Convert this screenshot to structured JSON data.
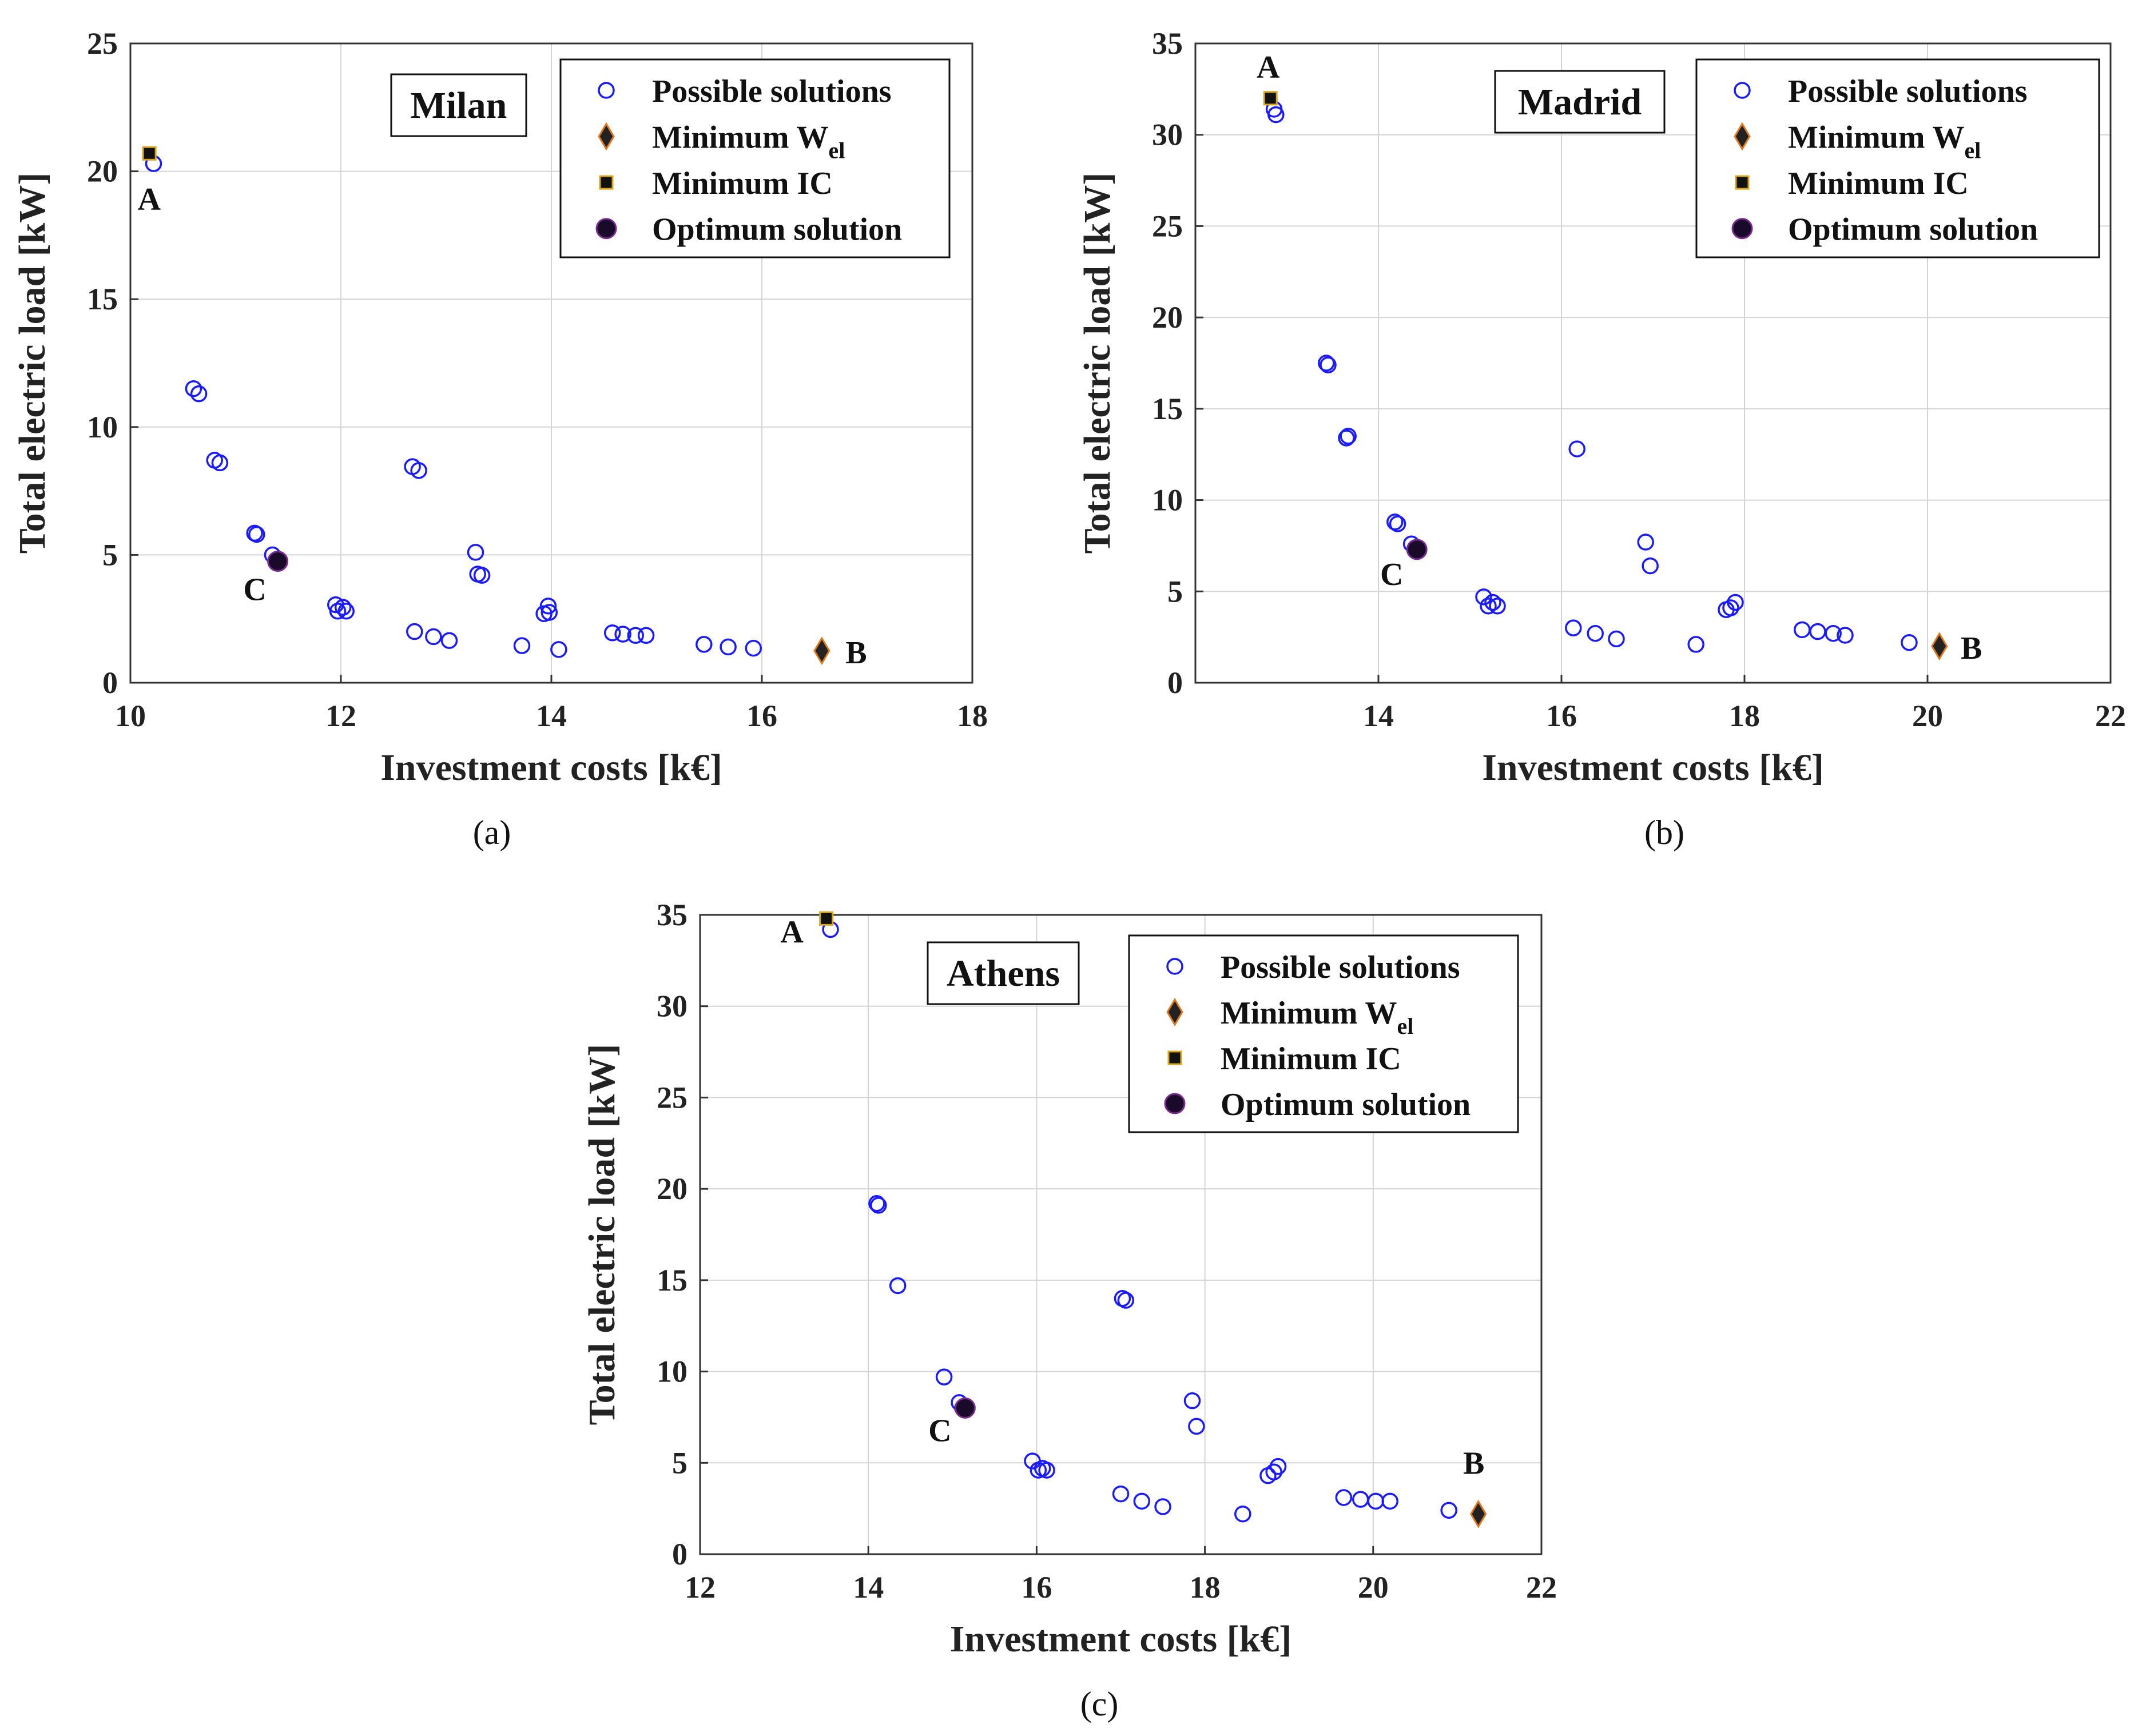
{
  "chart_data": [
    {
      "type": "scatter",
      "id": "milan",
      "panel_label": "(a)",
      "city": "Milan",
      "xlabel": "Investment costs  [k€]",
      "ylabel": "Total electric load [kW]",
      "xlim": [
        10,
        18
      ],
      "ylim": [
        0,
        25
      ],
      "xticks": [
        10,
        12,
        14,
        16,
        18
      ],
      "yticks": [
        0,
        5,
        10,
        15,
        20,
        25
      ],
      "grid": true,
      "legend_position": "top-right",
      "legend": [
        "Possible solutions",
        "Minimum W",
        "Minimum IC",
        "Optimum solution"
      ],
      "legend_sub": "el",
      "series": [
        {
          "name": "Possible solutions",
          "marker": "circle",
          "points": [
            [
              10.22,
              20.3
            ],
            [
              10.6,
              11.5
            ],
            [
              10.65,
              11.3
            ],
            [
              10.8,
              8.7
            ],
            [
              10.85,
              8.6
            ],
            [
              11.18,
              5.85
            ],
            [
              11.2,
              5.8
            ],
            [
              11.35,
              5.0
            ],
            [
              11.4,
              4.75
            ],
            [
              11.95,
              3.05
            ],
            [
              11.97,
              2.8
            ],
            [
              12.02,
              2.95
            ],
            [
              12.05,
              2.8
            ],
            [
              12.68,
              8.45
            ],
            [
              12.74,
              8.3
            ],
            [
              12.7,
              2.0
            ],
            [
              12.88,
              1.8
            ],
            [
              13.03,
              1.65
            ],
            [
              13.28,
              5.1
            ],
            [
              13.3,
              4.25
            ],
            [
              13.34,
              4.2
            ],
            [
              13.72,
              1.45
            ],
            [
              13.93,
              2.7
            ],
            [
              13.97,
              3.0
            ],
            [
              13.98,
              2.75
            ],
            [
              14.07,
              1.3
            ],
            [
              14.58,
              1.95
            ],
            [
              14.68,
              1.9
            ],
            [
              14.8,
              1.85
            ],
            [
              14.9,
              1.85
            ],
            [
              15.45,
              1.5
            ],
            [
              15.68,
              1.4
            ],
            [
              15.92,
              1.35
            ]
          ]
        },
        {
          "name": "Minimum W",
          "marker": "diamond",
          "points": [
            [
              16.57,
              1.25
            ]
          ]
        },
        {
          "name": "Minimum IC",
          "marker": "square",
          "points": [
            [
              10.18,
              20.7
            ]
          ]
        },
        {
          "name": "Optimum solution",
          "marker": "dot",
          "points": [
            [
              11.4,
              4.75
            ]
          ]
        }
      ],
      "annotations": [
        {
          "text": "A",
          "x": 10.2,
          "y": 20.5
        },
        {
          "text": "B",
          "x": 16.57,
          "y": 1.25
        },
        {
          "text": "C",
          "x": 11.4,
          "y": 4.75
        }
      ]
    },
    {
      "type": "scatter",
      "id": "madrid",
      "panel_label": "(b)",
      "city": "Madrid",
      "xlabel": "Investment costs [k€]",
      "ylabel": "Total electric load [kW]",
      "xlim": [
        12,
        22
      ],
      "ylim": [
        0,
        35
      ],
      "xticks": [
        14,
        16,
        18,
        20,
        22
      ],
      "yticks": [
        0,
        5,
        10,
        15,
        20,
        25,
        30,
        35
      ],
      "grid": true,
      "legend_position": "top-right",
      "legend": [
        "Possible solutions",
        "Minimum W",
        "Minimum IC",
        "Optimum solution"
      ],
      "legend_sub": "el",
      "series": [
        {
          "name": "Possible solutions",
          "marker": "circle",
          "points": [
            [
              12.88,
              31.1
            ],
            [
              12.86,
              31.4
            ],
            [
              13.43,
              17.5
            ],
            [
              13.45,
              17.4
            ],
            [
              13.65,
              13.4
            ],
            [
              13.67,
              13.5
            ],
            [
              14.18,
              8.8
            ],
            [
              14.21,
              8.7
            ],
            [
              14.36,
              7.6
            ],
            [
              14.42,
              7.2
            ],
            [
              15.15,
              4.7
            ],
            [
              15.2,
              4.2
            ],
            [
              15.25,
              4.4
            ],
            [
              15.3,
              4.2
            ],
            [
              16.17,
              12.8
            ],
            [
              16.13,
              3.0
            ],
            [
              16.37,
              2.7
            ],
            [
              16.6,
              2.4
            ],
            [
              16.92,
              7.7
            ],
            [
              16.97,
              6.4
            ],
            [
              17.47,
              2.1
            ],
            [
              17.8,
              4.0
            ],
            [
              17.85,
              4.1
            ],
            [
              17.9,
              4.4
            ],
            [
              18.63,
              2.9
            ],
            [
              18.8,
              2.8
            ],
            [
              18.97,
              2.7
            ],
            [
              19.1,
              2.6
            ],
            [
              19.8,
              2.2
            ]
          ]
        },
        {
          "name": "Minimum W",
          "marker": "diamond",
          "points": [
            [
              20.13,
              2.0
            ]
          ]
        },
        {
          "name": "Minimum IC",
          "marker": "square",
          "points": [
            [
              12.82,
              32.0
            ]
          ]
        },
        {
          "name": "Optimum solution",
          "marker": "dot",
          "points": [
            [
              14.42,
              7.3
            ]
          ]
        }
      ],
      "annotations": [
        {
          "text": "A",
          "x": 12.82,
          "y": 32.0
        },
        {
          "text": "B",
          "x": 20.13,
          "y": 2.0
        },
        {
          "text": "C",
          "x": 14.42,
          "y": 7.3
        }
      ]
    },
    {
      "type": "scatter",
      "id": "athens",
      "panel_label": "(c)",
      "city": "Athens",
      "xlabel": "Investment costs [k€]",
      "ylabel": "Total electric load  [kW]",
      "xlim": [
        12,
        22
      ],
      "ylim": [
        0,
        35
      ],
      "xticks": [
        12,
        14,
        16,
        18,
        20,
        22
      ],
      "yticks": [
        0,
        5,
        10,
        15,
        20,
        25,
        30,
        35
      ],
      "grid": true,
      "legend_position": "top-right",
      "legend": [
        "Possible solutions",
        "Minimum W",
        "Minimum IC",
        "Optimum solution"
      ],
      "legend_sub": "el",
      "series": [
        {
          "name": "Possible solutions",
          "marker": "circle",
          "points": [
            [
              13.55,
              34.2
            ],
            [
              14.1,
              19.2
            ],
            [
              14.12,
              19.1
            ],
            [
              14.35,
              14.7
            ],
            [
              14.9,
              9.7
            ],
            [
              15.08,
              8.3
            ],
            [
              15.12,
              8.0
            ],
            [
              15.95,
              5.1
            ],
            [
              16.02,
              4.6
            ],
            [
              16.07,
              4.7
            ],
            [
              16.12,
              4.6
            ],
            [
              17.02,
              14.0
            ],
            [
              17.06,
              13.9
            ],
            [
              17.0,
              3.3
            ],
            [
              17.25,
              2.9
            ],
            [
              17.5,
              2.6
            ],
            [
              17.85,
              8.4
            ],
            [
              17.9,
              7.0
            ],
            [
              18.45,
              2.2
            ],
            [
              18.75,
              4.3
            ],
            [
              18.82,
              4.5
            ],
            [
              18.87,
              4.8
            ],
            [
              19.65,
              3.1
            ],
            [
              19.85,
              3.0
            ],
            [
              20.03,
              2.9
            ],
            [
              20.2,
              2.9
            ],
            [
              20.9,
              2.4
            ]
          ]
        },
        {
          "name": "Minimum W",
          "marker": "diamond",
          "points": [
            [
              21.25,
              2.2
            ]
          ]
        },
        {
          "name": "Minimum IC",
          "marker": "square",
          "points": [
            [
              13.5,
              34.8
            ]
          ]
        },
        {
          "name": "Optimum solution",
          "marker": "dot",
          "points": [
            [
              15.15,
              8.0
            ]
          ]
        }
      ],
      "annotations": [
        {
          "text": "A",
          "x": 13.5,
          "y": 34.8
        },
        {
          "text": "B",
          "x": 21.25,
          "y": 2.2
        },
        {
          "text": "C",
          "x": 15.15,
          "y": 8.0
        }
      ]
    }
  ],
  "colors": {
    "circle": "#1a1aff",
    "diamond_fill": "#222222",
    "diamond_edge": "#e0781e",
    "square_fill": "#111111",
    "square_edge": "#d9a514",
    "dot_fill": "#1a0a2a",
    "dot_edge": "#7a2a90",
    "grid": "#d4d4d4",
    "axis": "#333333"
  }
}
